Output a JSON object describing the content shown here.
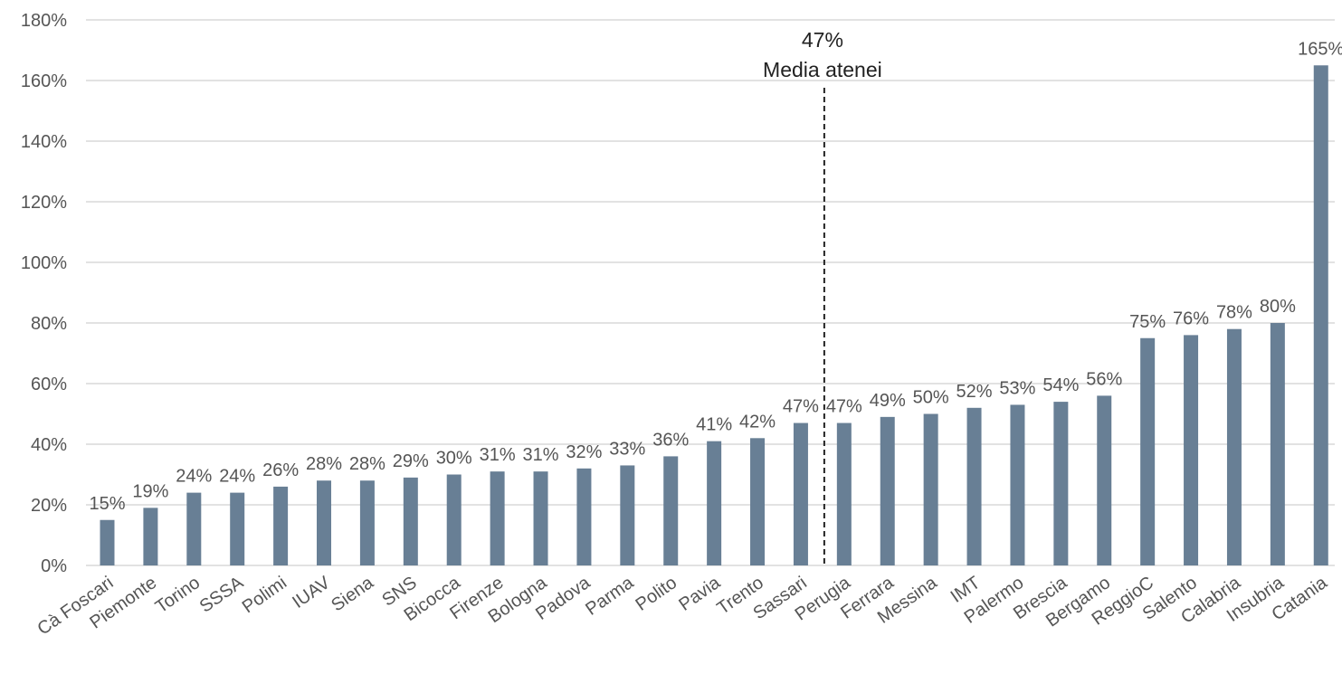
{
  "chart_data": {
    "type": "bar",
    "categories": [
      "Cà Foscari",
      "Piemonte",
      "Torino",
      "SSSA",
      "Polimi",
      "IUAV",
      "Siena",
      "SNS",
      "Bicocca",
      "Firenze",
      "Bologna",
      "Padova",
      "Parma",
      "Polito",
      "Pavia",
      "Trento",
      "Sassari",
      "Perugia",
      "Ferrara",
      "Messina",
      "IMT",
      "Palermo",
      "Brescia",
      "Bergamo",
      "ReggioC",
      "Salento",
      "Calabria",
      "Insubria",
      "Catania"
    ],
    "values": [
      15,
      19,
      24,
      24,
      26,
      28,
      28,
      29,
      30,
      31,
      31,
      32,
      33,
      36,
      41,
      42,
      47,
      47,
      49,
      50,
      52,
      53,
      54,
      56,
      75,
      76,
      78,
      80,
      165
    ],
    "value_labels": [
      "15%",
      "19%",
      "24%",
      "24%",
      "26%",
      "28%",
      "28%",
      "29%",
      "30%",
      "31%",
      "31%",
      "32%",
      "33%",
      "36%",
      "41%",
      "42%",
      "47%",
      "47%",
      "49%",
      "50%",
      "52%",
      "53%",
      "54%",
      "56%",
      "75%",
      "76%",
      "78%",
      "80%",
      "165%"
    ],
    "ylim": [
      0,
      180
    ],
    "yticks": [
      0,
      20,
      40,
      60,
      80,
      100,
      120,
      140,
      160,
      180
    ],
    "ytick_labels": [
      "0%",
      "20%",
      "40%",
      "60%",
      "80%",
      "100%",
      "120%",
      "140%",
      "160%",
      "180%"
    ],
    "grid": true,
    "bar_color": "#687f95",
    "reference_line": {
      "value": 47,
      "value_label": "47%",
      "label": "Media atenei",
      "style": "dashed",
      "position_between": [
        "Sassari",
        "Perugia"
      ]
    }
  }
}
